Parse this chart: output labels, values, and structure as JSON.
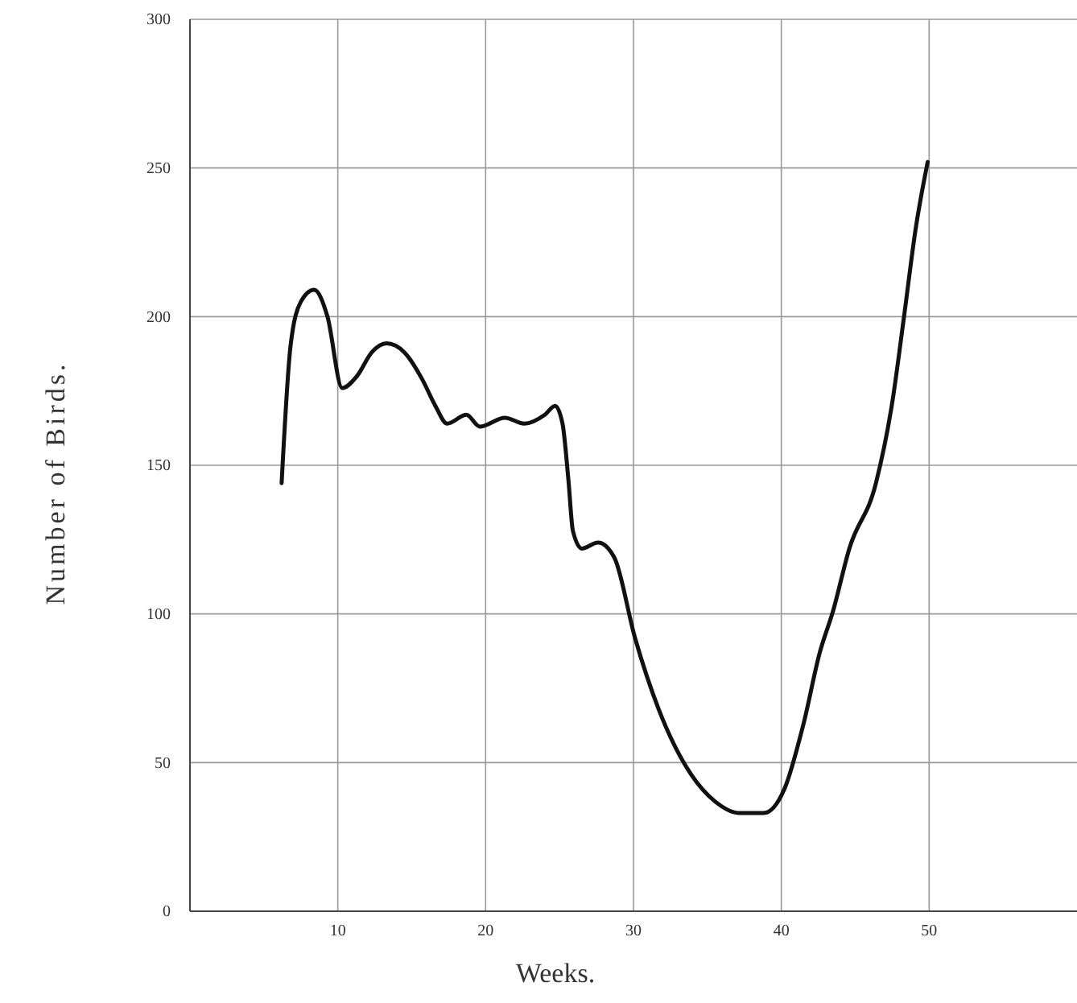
{
  "chart_data": {
    "type": "line",
    "xlabel": "Weeks.",
    "ylabel": "Number of Birds.",
    "xlim": [
      0,
      60
    ],
    "ylim": [
      0,
      300
    ],
    "xticks": [
      10,
      20,
      30,
      40,
      50
    ],
    "yticks": [
      0,
      50,
      100,
      150,
      200,
      250,
      300
    ],
    "grid": true,
    "marker": "none",
    "line_style": "solid",
    "series": [
      {
        "color": "#111111",
        "x": [
          6.2,
          6.8,
          7.5,
          8.4,
          9.3,
          10.3,
          11.3,
          12.3,
          13.3,
          14.5,
          15.7,
          16.6,
          17.4,
          18.7,
          19.6,
          21.3,
          22.6,
          24.0,
          24.7,
          25.2,
          25.6,
          25.9,
          26.5,
          27.6,
          28.7,
          30.1,
          31.7,
          33.9,
          35.5,
          37.2,
          38.8,
          40.2,
          41.5,
          42.6,
          43.5,
          44.6,
          46.4,
          47.5,
          48.3,
          49.1,
          49.9
        ],
        "values": [
          144,
          190,
          205,
          209,
          200,
          176,
          180,
          188,
          191,
          188,
          179,
          170,
          164,
          167,
          163,
          166,
          164,
          167,
          170,
          164,
          145,
          128,
          122,
          124,
          119,
          92,
          68,
          46,
          37,
          33,
          33,
          41,
          63,
          87,
          101,
          122,
          144,
          171,
          200,
          230,
          252
        ]
      }
    ]
  }
}
